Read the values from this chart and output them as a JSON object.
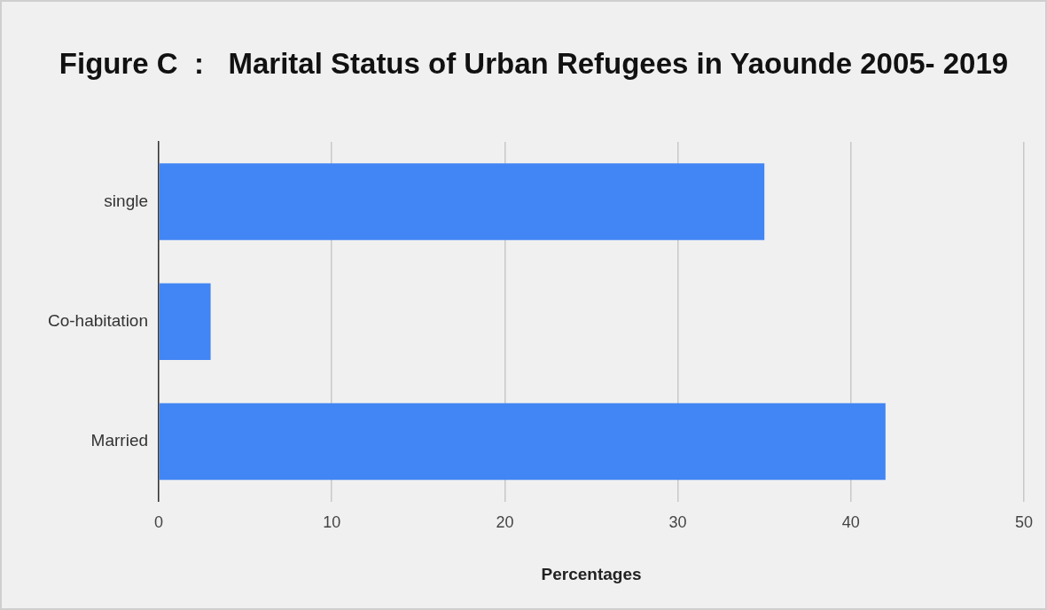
{
  "chart_data": {
    "type": "bar",
    "orientation": "horizontal",
    "title": "Figure C  :   Marital Status of Urban Refugees in Yaounde 2005- 2019",
    "xlabel": "Percentages",
    "categories": [
      "single",
      "Co-habitation",
      "Married"
    ],
    "values": [
      35,
      3,
      42
    ],
    "color": "#4285f4",
    "xlim": [
      0,
      50
    ],
    "xticks": [
      0,
      10,
      20,
      30,
      40,
      50
    ],
    "grid": "x",
    "legend": false
  }
}
